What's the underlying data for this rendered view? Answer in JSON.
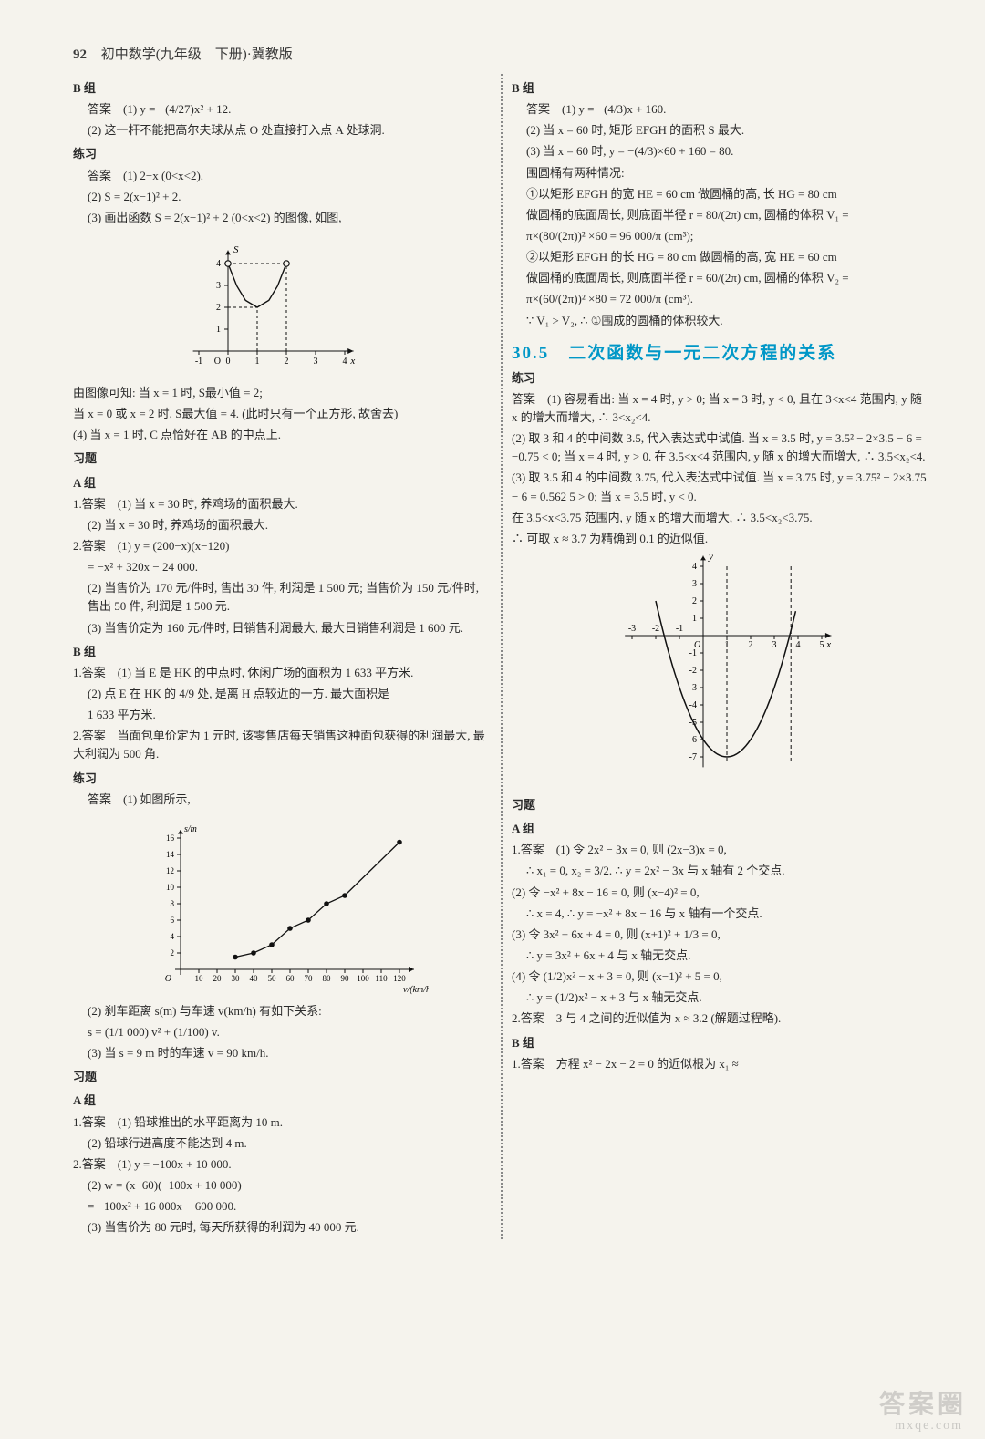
{
  "header": {
    "num": "92",
    "title": "初中数学(九年级　下册)·冀教版"
  },
  "left": {
    "b_label": "B 组",
    "b_ans1": "答案　(1) y = −(4/27)x² + 12.",
    "b_line2": "(2) 这一杆不能把高尔夫球从点 O 处直接打入点 A 处球洞.",
    "lianxi": "练习",
    "lx1": "答案　(1) 2−x (0<x<2).",
    "lx2": "(2) S = 2(x−1)² + 2.",
    "lx3": "(3) 画出函数 S = 2(x−1)² + 2 (0<x<2) 的图像, 如图,",
    "fig1": {
      "xlabel": "x",
      "ylabel": "S",
      "xlim": [
        -1,
        4
      ],
      "ylim": [
        0,
        4.5
      ],
      "xticks": [
        -1,
        0,
        1,
        2,
        3,
        4
      ],
      "yticks": [
        1,
        2,
        3,
        4
      ],
      "curve_pts": [
        [
          0,
          4
        ],
        [
          0.3,
          2.98
        ],
        [
          0.6,
          2.32
        ],
        [
          1,
          2
        ],
        [
          1.4,
          2.32
        ],
        [
          1.7,
          2.98
        ],
        [
          2,
          4
        ]
      ],
      "dash_x": [
        0,
        2
      ],
      "dash_y": [
        2,
        4
      ],
      "markers": [
        [
          0,
          4
        ],
        [
          2,
          4
        ]
      ],
      "line_color": "#111",
      "axis_color": "#111",
      "bg": "#f5f3ed",
      "open_marker_r": 3.2
    },
    "after_fig1_a": "由图像可知: 当 x = 1 时, S最小值 = 2;",
    "after_fig1_b": "当 x = 0 或 x = 2 时, S最大值 = 4. (此时只有一个正方形, 故舍去)",
    "after_fig1_c": "(4) 当 x = 1 时, C 点恰好在 AB 的中点上.",
    "xiti": "习题",
    "a_label": "A 组",
    "a1": "1.答案　(1) 当 x = 30 时, 养鸡场的面积最大.",
    "a1b": "(2) 当 x = 30 时, 养鸡场的面积最大.",
    "a2": "2.答案　(1) y = (200−x)(x−120)",
    "a2b": "= −x² + 320x − 24 000.",
    "a2c": "(2) 当售价为 170 元/件时, 售出 30 件, 利润是 1 500 元; 当售价为 150 元/件时, 售出 50 件, 利润是 1 500 元.",
    "a2d": "(3) 当售价定为 160 元/件时, 日销售利润最大, 最大日销售利润是 1 600 元.",
    "b_label2": "B 组",
    "b1": "1.答案　(1) 当 E 是 HK 的中点时, 休闲广场的面积为 1 633 平方米.",
    "b1b": "(2) 点 E 在 HK 的 4/9 处, 是离 H 点较近的一方. 最大面积是",
    "b1c": "1 633 平方米.",
    "b2": "2.答案　当面包单价定为 1 元时, 该零售店每天销售这种面包获得的利润最大, 最大利润为 500 角.",
    "lianxi2": "练习",
    "lx2_1": "答案　(1) 如图所示,",
    "fig2": {
      "xlabel": "v/(km/h)",
      "ylabel": "s/m",
      "xticks": [
        10,
        20,
        30,
        40,
        50,
        60,
        70,
        80,
        90,
        100,
        110,
        120
      ],
      "yticks": [
        2,
        4,
        6,
        8,
        10,
        12,
        14,
        16
      ],
      "pts": [
        [
          30,
          1.5
        ],
        [
          40,
          2
        ],
        [
          50,
          3
        ],
        [
          60,
          5
        ],
        [
          70,
          6
        ],
        [
          80,
          8
        ],
        [
          90,
          9
        ],
        [
          120,
          15.5
        ]
      ],
      "marker_color": "#111",
      "line_color": "#111",
      "axis_color": "#111",
      "marker_r": 2.8
    },
    "lx2_2": "(2) 刹车距离 s(m) 与车速 v(km/h) 有如下关系:",
    "lx2_3": "s = (1/1 000) v² + (1/100) v.",
    "lx2_4": "(3) 当 s = 9 m 时的车速 v = 90 km/h.",
    "xiti2": "习题",
    "a_label2": "A 组",
    "xa1": "1.答案　(1) 铅球推出的水平距离为 10 m.",
    "xa1b": "(2) 铅球行进高度不能达到 4 m.",
    "xa2": "2.答案　(1) y = −100x + 10 000.",
    "xa2b": "(2) w = (x−60)(−100x + 10 000)",
    "xa2c": "= −100x² + 16 000x − 600 000.",
    "xa2d": "(3) 当售价为 80 元时, 每天所获得的利润为 40 000 元."
  },
  "right": {
    "b_label": "B 组",
    "b1": "答案　(1) y = −(4/3)x + 160.",
    "b2": "(2) 当 x = 60 时, 矩形 EFGH 的面积 S 最大.",
    "b3": "(3) 当 x = 60 时, y = −(4/3)×60 + 160 = 80.",
    "b4": "围圆桶有两种情况:",
    "b5": "①以矩形 EFGH 的宽 HE = 60 cm 做圆桶的高, 长 HG = 80 cm",
    "b6": "做圆桶的底面周长, 则底面半径 r = 80/(2π) cm, 圆桶的体积 V₁ =",
    "b7": "π×(80/(2π))² ×60 = 96 000/π (cm³);",
    "b8": "②以矩形 EFGH 的长 HG = 80 cm 做圆桶的高, 宽 HE = 60 cm",
    "b9": "做圆桶的底面周长, 则底面半径 r = 60/(2π) cm, 圆桶的体积 V₂ =",
    "b10": "π×(60/(2π))² ×80 = 72 000/π (cm³).",
    "b11": "∵ V₁ > V₂, ∴ ①围成的圆桶的体积较大.",
    "sec_title": "30.5　二次函数与一元二次方程的关系",
    "lianxi": "练习",
    "l1": "答案　(1) 容易看出: 当 x = 4 时, y > 0; 当 x = 3 时, y < 0, 且在 3<x<4 范围内, y 随 x 的增大而增大, ∴ 3<x₂<4.",
    "l2": "(2) 取 3 和 4 的中间数 3.5, 代入表达式中试值. 当 x = 3.5 时, y = 3.5² − 2×3.5 − 6 = −0.75 < 0; 当 x = 4 时, y > 0. 在 3.5<x<4 范围内, y 随 x 的增大而增大, ∴ 3.5<x₂<4.",
    "l3": "(3) 取 3.5 和 4 的中间数 3.75, 代入表达式中试值. 当 x = 3.75 时, y = 3.75² − 2×3.75 − 6 = 0.562 5 > 0; 当 x = 3.5 时, y < 0.",
    "l4": "在 3.5<x<3.75 范围内, y 随 x 的增大而增大, ∴ 3.5<x₂<3.75.",
    "l5": "∴ 可取 x ≈ 3.7 为精确到 0.1 的近似值.",
    "fig3": {
      "xlabel": "x",
      "ylabel": "y",
      "xlim": [
        -3,
        5
      ],
      "ylim": [
        -7,
        4
      ],
      "xticks": [
        -3,
        -2,
        -1,
        1,
        2,
        3,
        4,
        5
      ],
      "yticks": [
        -7,
        -6,
        -5,
        -4,
        -3,
        -2,
        -1,
        1,
        2,
        3,
        4
      ],
      "curve": [
        [
          -2,
          2
        ],
        [
          -1.65,
          0
        ],
        [
          -1,
          -3
        ],
        [
          0,
          -6
        ],
        [
          1,
          -7
        ],
        [
          2,
          -6
        ],
        [
          3,
          -3
        ],
        [
          3.65,
          0
        ],
        [
          4,
          2
        ]
      ],
      "dash_vlines": [
        1,
        3.7
      ],
      "axis_color": "#111",
      "line_color": "#111"
    },
    "xiti": "习题",
    "a_label": "A 组",
    "a1": "1.答案　(1) 令 2x² − 3x = 0, 则 (2x−3)x = 0,",
    "a1b": "∴ x₁ = 0, x₂ = 3/2. ∴ y = 2x² − 3x 与 x 轴有 2 个交点.",
    "a2": "(2) 令 −x² + 8x − 16 = 0, 则 (x−4)² = 0,",
    "a2b": "∴ x = 4, ∴ y = −x² + 8x − 16 与 x 轴有一个交点.",
    "a3": "(3) 令 3x² + 6x + 4 = 0, 则 (x+1)² + 1/3 = 0,",
    "a3b": "∴ y = 3x² + 6x + 4 与 x 轴无交点.",
    "a4": "(4) 令 (1/2)x² − x + 3 = 0, 则 (x−1)² + 5 = 0,",
    "a4b": "∴ y = (1/2)x² − x + 3 与 x 轴无交点.",
    "a5": "2.答案　3 与 4 之间的近似值为 x ≈ 3.2 (解题过程略).",
    "b_label2": "B 组",
    "bb1": "1.答案　方程 x² − 2x − 2 = 0 的近似根为 x₁ ≈"
  },
  "watermark": "答案圈",
  "wm2": "mxqe.com"
}
